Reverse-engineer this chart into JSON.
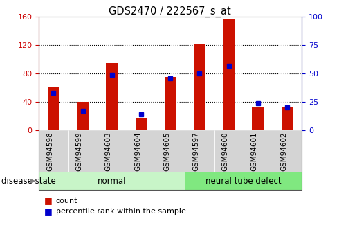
{
  "title": "GDS2470 / 222567_s_at",
  "samples": [
    "GSM94598",
    "GSM94599",
    "GSM94603",
    "GSM94604",
    "GSM94605",
    "GSM94597",
    "GSM94600",
    "GSM94601",
    "GSM94602"
  ],
  "count_values": [
    62,
    40,
    95,
    18,
    75,
    122,
    157,
    33,
    32
  ],
  "percentile_values": [
    33,
    17,
    49,
    14,
    46,
    50,
    57,
    24,
    20
  ],
  "disease_groups": [
    {
      "label": "normal",
      "n_samples": 5,
      "color": "#c8f5c8"
    },
    {
      "label": "neural tube defect",
      "n_samples": 4,
      "color": "#80e880"
    }
  ],
  "left_yaxis": {
    "min": 0,
    "max": 160,
    "ticks": [
      0,
      40,
      80,
      120,
      160
    ],
    "color": "#cc0000"
  },
  "right_yaxis": {
    "min": 0,
    "max": 100,
    "ticks": [
      0,
      25,
      50,
      75,
      100
    ],
    "color": "#0000cc"
  },
  "bar_color": "#cc1100",
  "square_color": "#0000cc",
  "tick_bg": "#d4d4d4",
  "legend_count_label": "count",
  "legend_percentile_label": "percentile rank within the sample",
  "disease_state_label": "disease state"
}
